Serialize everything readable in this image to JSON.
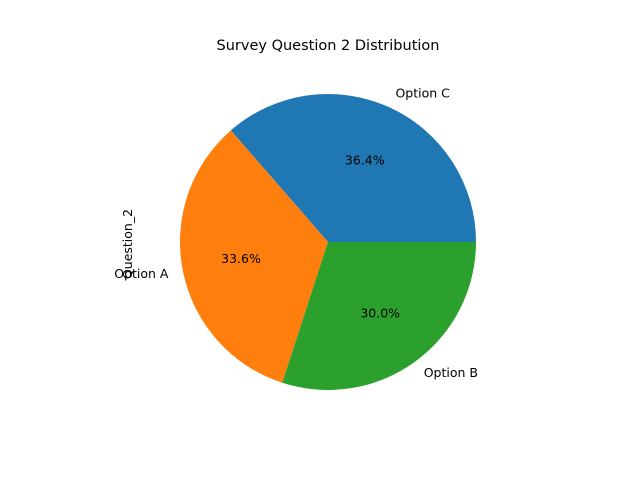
{
  "chart_data": {
    "type": "pie",
    "title": "Survey Question 2 Distribution",
    "ylabel": "Question_2",
    "xlabel": "",
    "slices": [
      {
        "label": "Option C",
        "value": 36.4,
        "pct_label": "36.4%",
        "color": "#1f77b4"
      },
      {
        "label": "Option A",
        "value": 33.6,
        "pct_label": "33.6%",
        "color": "#ff7f0e"
      },
      {
        "label": "Option B",
        "value": 30.0,
        "pct_label": "30.0%",
        "color": "#2ca02c"
      }
    ],
    "start_angle_deg": 0,
    "direction": "counterclockwise",
    "legend": "none"
  }
}
